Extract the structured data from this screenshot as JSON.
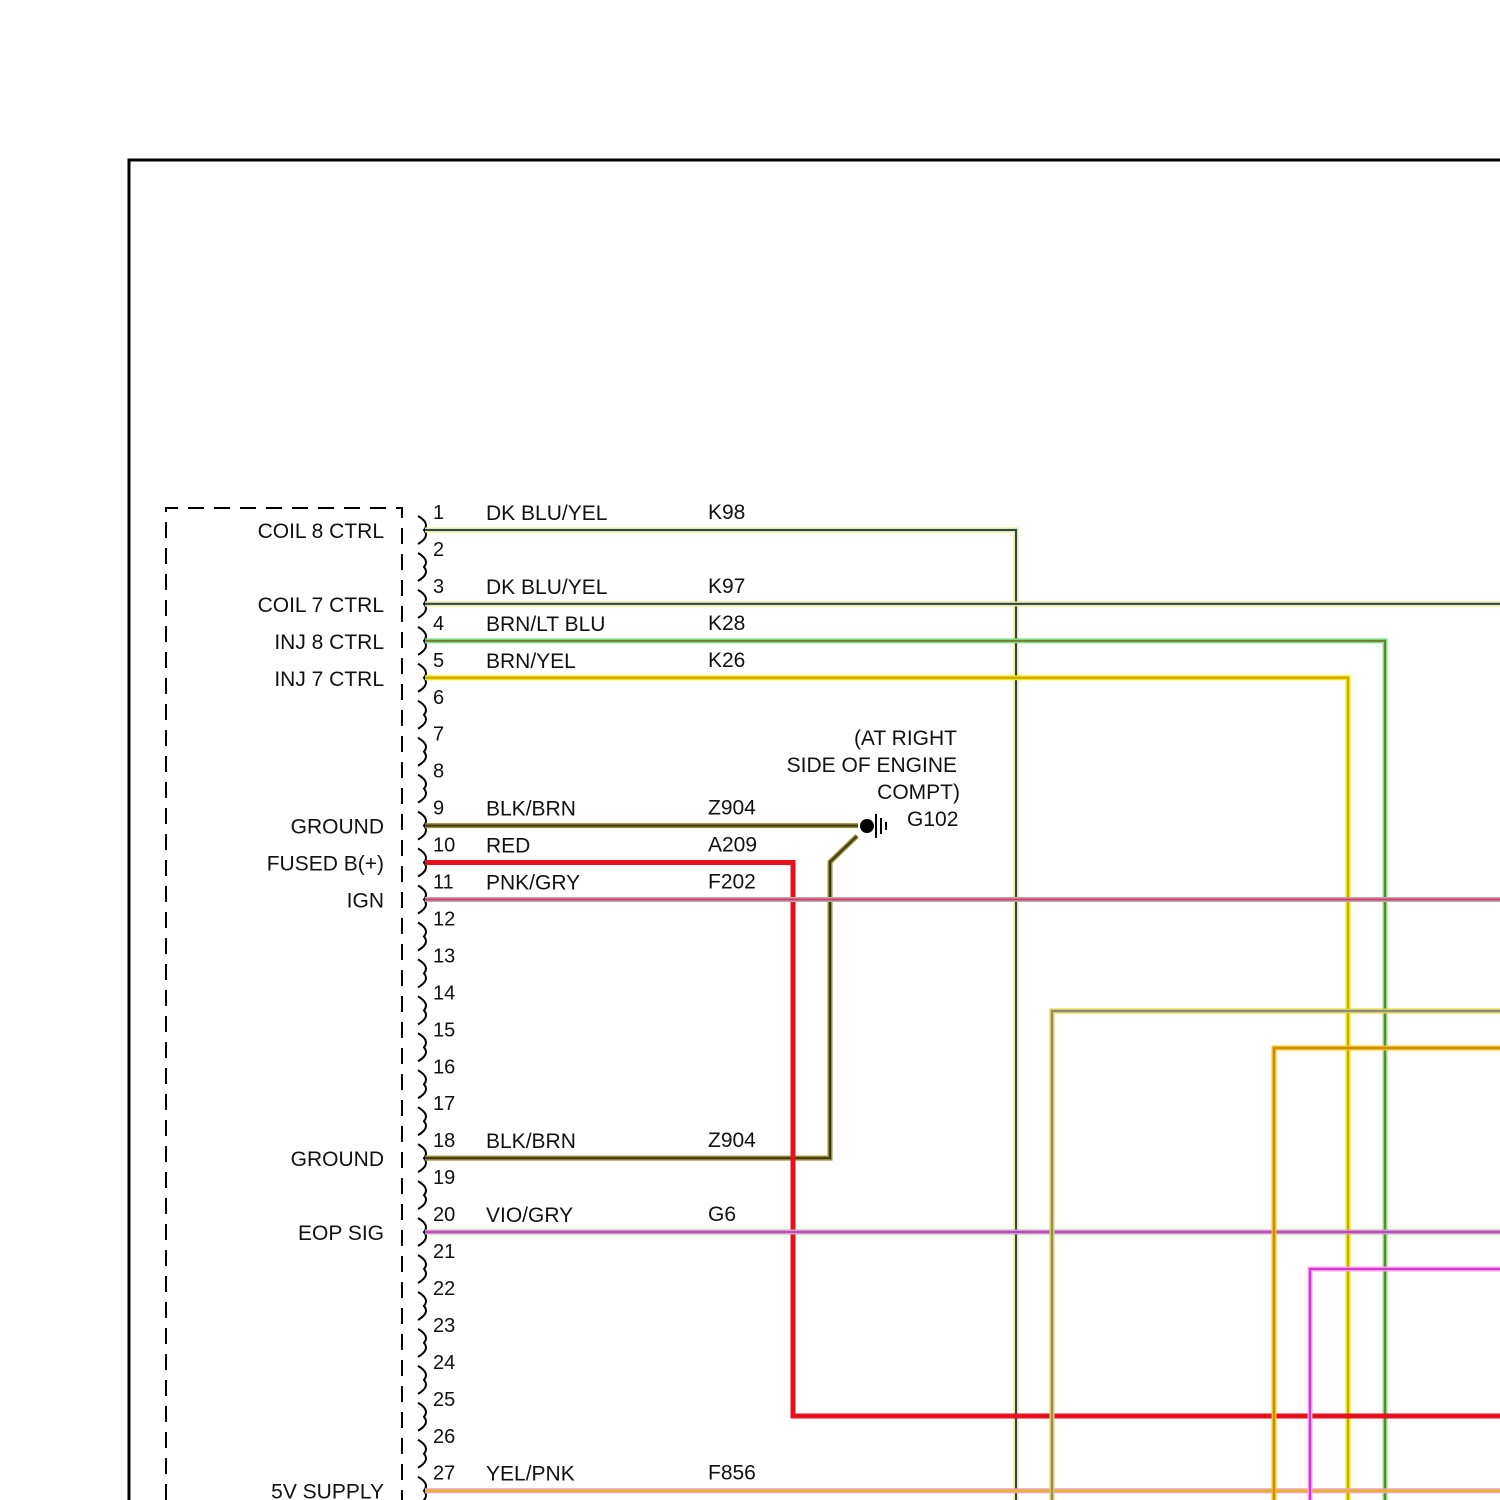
{
  "connector": {
    "pins": [
      {
        "pin": "1",
        "function": "COIL 8 CTRL",
        "wire_color": "DK BLU/YEL",
        "circuit": "K98",
        "stroke": "#1f3f8f",
        "tracer": "#f2ec6a"
      },
      {
        "pin": "2",
        "function": "",
        "wire_color": "",
        "circuit": ""
      },
      {
        "pin": "3",
        "function": "COIL 7 CTRL",
        "wire_color": "DK BLU/YEL",
        "circuit": "K97",
        "stroke": "#1f3f8f",
        "tracer": "#f2ec6a"
      },
      {
        "pin": "4",
        "function": "INJ 8 CTRL",
        "wire_color": "BRN/LT BLU",
        "circuit": "K28",
        "stroke": "#7a7a2a",
        "tracer": "#7fe08a"
      },
      {
        "pin": "5",
        "function": "INJ 7 CTRL",
        "wire_color": "BRN/YEL",
        "circuit": "K26",
        "stroke": "#c9a300",
        "tracer": "#f5e600"
      },
      {
        "pin": "6",
        "function": "",
        "wire_color": "",
        "circuit": ""
      },
      {
        "pin": "7",
        "function": "",
        "wire_color": "",
        "circuit": ""
      },
      {
        "pin": "8",
        "function": "",
        "wire_color": "",
        "circuit": ""
      },
      {
        "pin": "9",
        "function": "GROUND",
        "wire_color": "BLK/BRN",
        "circuit": "Z904",
        "stroke": "#3a3a1a",
        "tracer": "#9a8a30"
      },
      {
        "pin": "10",
        "function": "FUSED B(+)",
        "wire_color": "RED",
        "circuit": "A209",
        "stroke": "#e8101c",
        "tracer": "#e8101c"
      },
      {
        "pin": "11",
        "function": "IGN",
        "wire_color": "PNK/GRY",
        "circuit": "F202",
        "stroke": "#e8306a",
        "tracer": "#b0b0b0"
      },
      {
        "pin": "12",
        "function": "",
        "wire_color": "",
        "circuit": ""
      },
      {
        "pin": "13",
        "function": "",
        "wire_color": "",
        "circuit": ""
      },
      {
        "pin": "14",
        "function": "",
        "wire_color": "",
        "circuit": ""
      },
      {
        "pin": "15",
        "function": "",
        "wire_color": "",
        "circuit": ""
      },
      {
        "pin": "16",
        "function": "",
        "wire_color": "",
        "circuit": ""
      },
      {
        "pin": "17",
        "function": "",
        "wire_color": "",
        "circuit": ""
      },
      {
        "pin": "18",
        "function": "GROUND",
        "wire_color": "BLK/BRN",
        "circuit": "Z904",
        "stroke": "#3a3a1a",
        "tracer": "#9a8a30"
      },
      {
        "pin": "19",
        "function": "",
        "wire_color": "",
        "circuit": ""
      },
      {
        "pin": "20",
        "function": "EOP SIG",
        "wire_color": "VIO/GRY",
        "circuit": "G6",
        "stroke": "#e030d8",
        "tracer": "#b0b0b0"
      },
      {
        "pin": "21",
        "function": "",
        "wire_color": "",
        "circuit": ""
      },
      {
        "pin": "22",
        "function": "",
        "wire_color": "",
        "circuit": ""
      },
      {
        "pin": "23",
        "function": "",
        "wire_color": "",
        "circuit": ""
      },
      {
        "pin": "24",
        "function": "",
        "wire_color": "",
        "circuit": ""
      },
      {
        "pin": "25",
        "function": "",
        "wire_color": "",
        "circuit": ""
      },
      {
        "pin": "26",
        "function": "",
        "wire_color": "",
        "circuit": ""
      },
      {
        "pin": "27",
        "function": "5V SUPPLY",
        "wire_color": "YEL/PNK",
        "circuit": "F856",
        "stroke": "#e8b800",
        "tracer": "#f0a0c0"
      }
    ]
  },
  "ground_point": {
    "location_lines": [
      "(AT RIGHT",
      "SIDE OF ENGINE",
      "COMPT)"
    ],
    "id": "G102"
  },
  "extra_wire_colors": {
    "gray_yellow": "#8a8a8a",
    "orange_yellow": "#d08a00",
    "magenta": "#e030d8"
  }
}
